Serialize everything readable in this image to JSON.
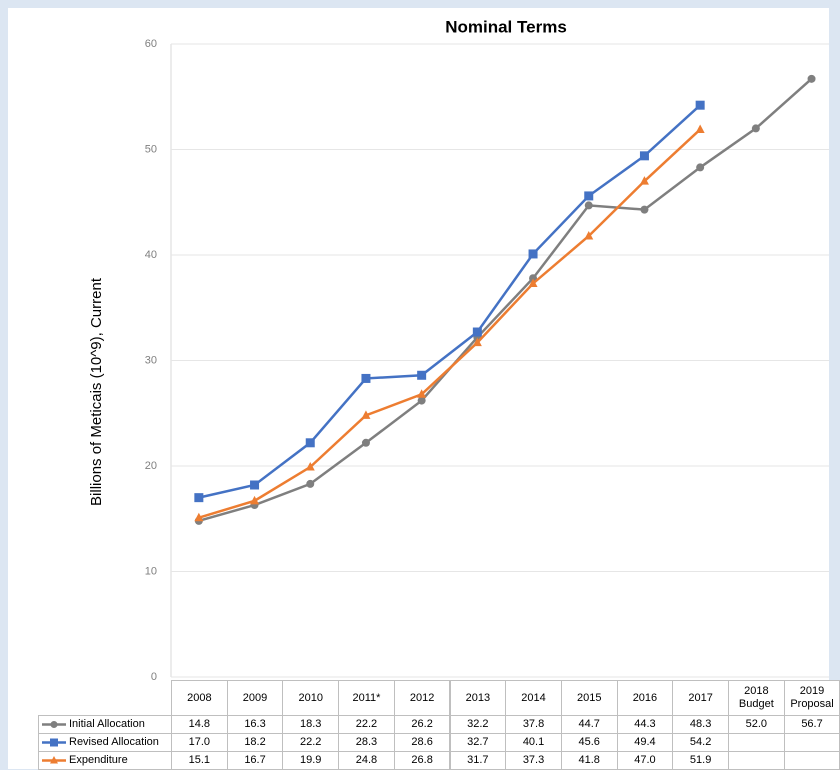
{
  "chart_data": {
    "type": "line",
    "title": "Nominal Terms",
    "y_label": "Billions of Meticais (10^9), Current",
    "categories": [
      "2008",
      "2009",
      "2010",
      "2011*",
      "2012",
      "2013",
      "2014",
      "2015",
      "2016",
      "2017",
      "2018 Budget",
      "2019 Proposal"
    ],
    "ylim": [
      0,
      60
    ],
    "yticks": [
      0,
      10,
      20,
      30,
      40,
      50,
      60
    ],
    "grid": true,
    "series": [
      {
        "name": "Initial Allocation",
        "color": "#7f7f7f",
        "marker": "circle",
        "values": [
          14.8,
          16.3,
          18.3,
          22.2,
          26.2,
          32.2,
          37.8,
          44.7,
          44.3,
          48.3,
          52.0,
          56.7
        ],
        "value_labels": [
          "14.8",
          "16.3",
          "18.3",
          "22.2",
          "26.2",
          "32.2",
          "37.8",
          "44.7",
          "44.3",
          "48.3",
          "52.0",
          "56.7"
        ]
      },
      {
        "name": "Revised Allocation",
        "color": "#4472c4",
        "marker": "square",
        "values": [
          17.0,
          18.2,
          22.2,
          28.3,
          28.6,
          32.7,
          40.1,
          45.6,
          49.4,
          54.2,
          null,
          null
        ],
        "value_labels": [
          "17.0",
          "18.2",
          "22.2",
          "28.3",
          "28.6",
          "32.7",
          "40.1",
          "45.6",
          "49.4",
          "54.2",
          null,
          null
        ]
      },
      {
        "name": "Expenditure",
        "color": "#ed7d31",
        "marker": "triangle",
        "values": [
          15.1,
          16.7,
          19.9,
          24.8,
          26.8,
          31.7,
          37.3,
          41.8,
          47.0,
          51.9,
          null,
          null
        ],
        "value_labels": [
          "15.1",
          "16.7",
          "19.9",
          "24.8",
          "26.8",
          "31.7",
          "37.3",
          "41.8",
          "47.0",
          "51.9",
          null,
          null
        ]
      }
    ]
  }
}
